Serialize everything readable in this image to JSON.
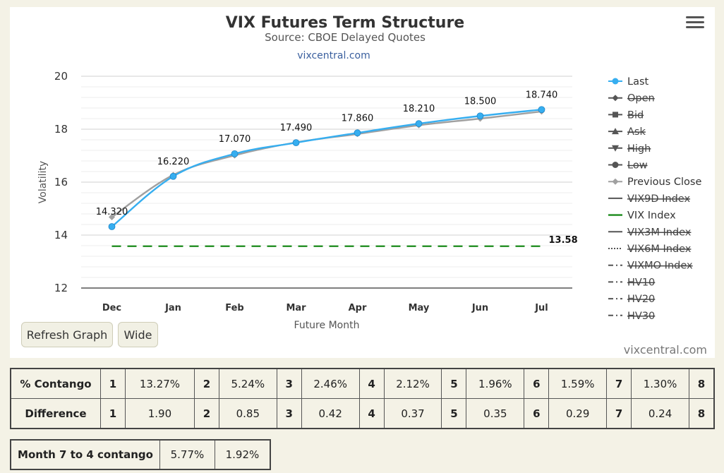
{
  "chart_data": {
    "type": "line",
    "title": "VIX Futures Term Structure",
    "subtitle": "Source: CBOE Delayed Quotes",
    "site_link": "vixcentral.com",
    "xlabel": "Future Month",
    "ylabel": "Volatility",
    "ylim": [
      12,
      20
    ],
    "yticks": [
      12,
      14,
      16,
      18,
      20
    ],
    "categories": [
      "Dec",
      "Jan",
      "Feb",
      "Mar",
      "Apr",
      "May",
      "Jun",
      "Jul"
    ],
    "grid": true,
    "legend_position": "right",
    "series": [
      {
        "name": "Last",
        "values": [
          14.32,
          16.22,
          17.07,
          17.49,
          17.86,
          18.21,
          18.5,
          18.74
        ],
        "data_labels": [
          "14.320",
          "16.220",
          "17.070",
          "17.490",
          "17.860",
          "18.210",
          "18.500",
          "18.740"
        ],
        "color": "#36aef0",
        "visible": true
      },
      {
        "name": "Previous Close",
        "values": [
          14.68,
          16.27,
          17.01,
          17.5,
          17.82,
          18.15,
          18.4,
          18.67
        ],
        "color": "#a0a0a0",
        "visible": true
      },
      {
        "name": "VIX Index",
        "value": 13.58,
        "value_label": "13.58",
        "color": "#1a8a1a",
        "style": "dashed",
        "visible": true
      }
    ],
    "legend": [
      {
        "name": "Last",
        "active": true,
        "symbol": "circle-line",
        "color": "#36aef0"
      },
      {
        "name": "Open",
        "active": false,
        "symbol": "diamond-line",
        "color": "#555555"
      },
      {
        "name": "Bid",
        "active": false,
        "symbol": "square-line",
        "color": "#555555"
      },
      {
        "name": "Ask",
        "active": false,
        "symbol": "triangle-line",
        "color": "#555555"
      },
      {
        "name": "High",
        "active": false,
        "symbol": "triangle-down-line",
        "color": "#555555"
      },
      {
        "name": "Low",
        "active": false,
        "symbol": "circle-line",
        "color": "#555555"
      },
      {
        "name": "Previous Close",
        "active": true,
        "symbol": "diamond-line",
        "color": "#a0a0a0"
      },
      {
        "name": "VIX9D Index",
        "active": false,
        "symbol": "solid-line",
        "color": "#555555"
      },
      {
        "name": "VIX Index",
        "active": true,
        "symbol": "solid-line",
        "color": "#1a8a1a"
      },
      {
        "name": "VIX3M Index",
        "active": false,
        "symbol": "solid-line",
        "color": "#555555"
      },
      {
        "name": "VIX6M Index",
        "active": false,
        "symbol": "dotted-line",
        "color": "#555555"
      },
      {
        "name": "VIXMO Index",
        "active": false,
        "symbol": "dashdot-line",
        "color": "#555555"
      },
      {
        "name": "HV10",
        "active": false,
        "symbol": "dashdot-line",
        "color": "#555555"
      },
      {
        "name": "HV20",
        "active": false,
        "symbol": "dashdot-line",
        "color": "#555555"
      },
      {
        "name": "HV30",
        "active": false,
        "symbol": "dashdot-line",
        "color": "#555555"
      }
    ]
  },
  "buttons": {
    "refresh": "Refresh Graph",
    "wide": "Wide"
  },
  "watermark": "vixcentral.com",
  "contango_table": {
    "rows": [
      {
        "label": "% Contango",
        "cells": [
          {
            "month": "1",
            "value": "13.27%"
          },
          {
            "month": "2",
            "value": "5.24%"
          },
          {
            "month": "3",
            "value": "2.46%"
          },
          {
            "month": "4",
            "value": "2.12%"
          },
          {
            "month": "5",
            "value": "1.96%"
          },
          {
            "month": "6",
            "value": "1.59%"
          },
          {
            "month": "7",
            "value": "1.30%"
          }
        ],
        "last_month": "8"
      },
      {
        "label": "Difference",
        "cells": [
          {
            "month": "1",
            "value": "1.90"
          },
          {
            "month": "2",
            "value": "0.85"
          },
          {
            "month": "3",
            "value": "0.42"
          },
          {
            "month": "4",
            "value": "0.37"
          },
          {
            "month": "5",
            "value": "0.35"
          },
          {
            "month": "6",
            "value": "0.29"
          },
          {
            "month": "7",
            "value": "0.24"
          }
        ],
        "last_month": "8"
      }
    ]
  },
  "summary_table": {
    "label": "Month 7 to 4 contango",
    "pct": "5.77%",
    "diff": "1.92%"
  }
}
